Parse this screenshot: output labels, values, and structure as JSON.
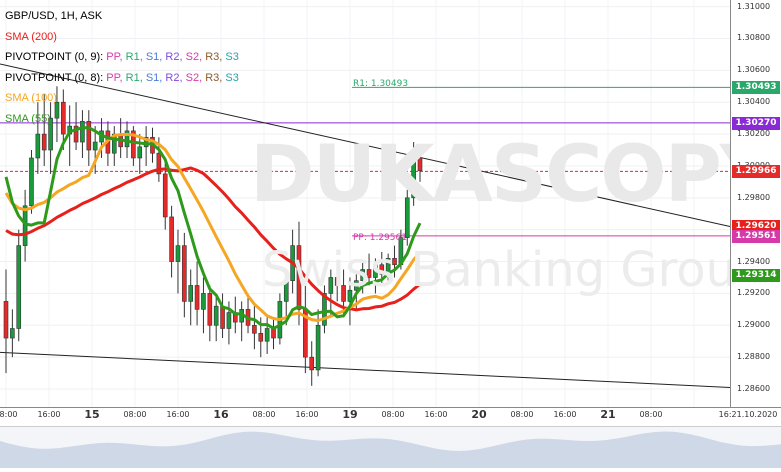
{
  "legend": {
    "symbol_line": "GBP/USD, 1H, ASK",
    "sma200": "SMA (200)",
    "pivot1_name": "PIVOTPOINT (0, 9):",
    "pivot1_items": [
      "PP,",
      "R1,",
      "S1,",
      "R2,",
      "S2,",
      "R3,",
      "S3"
    ],
    "pivot2_name": "PIVOTPOINT (0, 8):",
    "pivot2_items": [
      "PP,",
      "R1,",
      "S1,",
      "R2,",
      "S2,",
      "R3,",
      "S3"
    ],
    "sma100": "SMA (100)",
    "sma55": "SMA (55)"
  },
  "colors": {
    "sma200": "#e8201c",
    "sma100": "#f5a623",
    "sma55": "#2e9a1b",
    "up": "#1a9a3c",
    "down": "#e52a2a",
    "pp": "#d63aa8",
    "r1": "#2aa86b",
    "s1": "#4a7ad6",
    "r2": "#7b4ae0",
    "s2": "#d63aa8",
    "r3": "#8a5a2b",
    "s3": "#2aa2a8"
  },
  "watermark": {
    "brand": "DUKASCOPY",
    "sub": "Swiss Banking Group"
  },
  "chart_labels": {
    "r1_line": "R1: 1.30493",
    "pp_line": "PP: 1.29561"
  },
  "y_axis": {
    "ticks": [
      "1.31000",
      "1.30800",
      "1.30600",
      "1.30400",
      "1.30200",
      "1.30000",
      "1.29800",
      "1.29600",
      "1.29400",
      "1.29200",
      "1.29000",
      "1.28800",
      "1.28600"
    ],
    "labels": [
      {
        "text": "1.30493",
        "bg": "#2aa86b"
      },
      {
        "text": "1.30270",
        "bg": "#8a2ad6"
      },
      {
        "text": "1.29966",
        "bg": "#e52a2a"
      },
      {
        "text": "1.29620",
        "bg": "#e8201c"
      },
      {
        "text": "1.29561",
        "bg": "#d63aa8"
      },
      {
        "text": "1.29314",
        "bg": "#2e9a1b"
      }
    ]
  },
  "x_axis": {
    "ticks": [
      "08:00",
      "16:00",
      "15",
      "08:00",
      "16:00",
      "16",
      "08:00",
      "16:00",
      "19",
      "08:00",
      "16:00",
      "20",
      "08:00",
      "16:00",
      "21",
      "08:00",
      "16:21.10.2020"
    ]
  },
  "chart_data": {
    "type": "candlestick",
    "title": "GBP/USD, 1H, ASK",
    "ylim": [
      1.2855,
      1.3101
    ],
    "candles": [
      [
        1.2915,
        1.2935,
        1.287,
        1.2892
      ],
      [
        1.2892,
        1.291,
        1.288,
        1.2898
      ],
      [
        1.2898,
        1.296,
        1.289,
        1.295
      ],
      [
        1.295,
        1.2985,
        1.294,
        1.2975
      ],
      [
        1.2975,
        1.301,
        1.297,
        1.3005
      ],
      [
        1.3005,
        1.304,
        1.2995,
        1.302
      ],
      [
        1.302,
        1.3045,
        1.3,
        1.301
      ],
      [
        1.301,
        1.304,
        1.2995,
        1.303
      ],
      [
        1.303,
        1.305,
        1.3015,
        1.304
      ],
      [
        1.304,
        1.3048,
        1.301,
        1.302
      ],
      [
        1.302,
        1.3038,
        1.3,
        1.3025
      ],
      [
        1.3025,
        1.304,
        1.301,
        1.3015
      ],
      [
        1.3015,
        1.3035,
        1.3005,
        1.3028
      ],
      [
        1.3028,
        1.3035,
        1.3,
        1.301
      ],
      [
        1.301,
        1.3025,
        1.2995,
        1.3015
      ],
      [
        1.3015,
        1.303,
        1.3005,
        1.3022
      ],
      [
        1.3022,
        1.3028,
        1.3,
        1.3008
      ],
      [
        1.3008,
        1.3025,
        1.3,
        1.302
      ],
      [
        1.302,
        1.303,
        1.3005,
        1.3012
      ],
      [
        1.3012,
        1.3028,
        1.3005,
        1.3022
      ],
      [
        1.3022,
        1.3025,
        1.3,
        1.3005
      ],
      [
        1.3005,
        1.302,
        1.2995,
        1.3012
      ],
      [
        1.3012,
        1.3025,
        1.3,
        1.3018
      ],
      [
        1.3018,
        1.3024,
        1.3002,
        1.3008
      ],
      [
        1.3008,
        1.3018,
        1.299,
        1.2995
      ],
      [
        1.2995,
        1.3005,
        1.296,
        1.2968
      ],
      [
        1.2968,
        1.2975,
        1.293,
        1.294
      ],
      [
        1.294,
        1.296,
        1.292,
        1.295
      ],
      [
        1.295,
        1.2958,
        1.2905,
        1.2915
      ],
      [
        1.2915,
        1.2935,
        1.29,
        1.2925
      ],
      [
        1.2925,
        1.294,
        1.29,
        1.291
      ],
      [
        1.291,
        1.293,
        1.2895,
        1.292
      ],
      [
        1.292,
        1.2925,
        1.289,
        1.29
      ],
      [
        1.29,
        1.2918,
        1.289,
        1.2912
      ],
      [
        1.2912,
        1.292,
        1.2892,
        1.2898
      ],
      [
        1.2898,
        1.2915,
        1.2888,
        1.2908
      ],
      [
        1.2908,
        1.2918,
        1.2895,
        1.2902
      ],
      [
        1.2902,
        1.2915,
        1.289,
        1.291
      ],
      [
        1.291,
        1.292,
        1.2895,
        1.29
      ],
      [
        1.29,
        1.2912,
        1.2885,
        1.2895
      ],
      [
        1.2895,
        1.2905,
        1.288,
        1.289
      ],
      [
        1.289,
        1.2905,
        1.2882,
        1.2898
      ],
      [
        1.2898,
        1.2905,
        1.2885,
        1.2892
      ],
      [
        1.2892,
        1.292,
        1.2888,
        1.2915
      ],
      [
        1.2915,
        1.2935,
        1.29,
        1.2928
      ],
      [
        1.2928,
        1.296,
        1.292,
        1.295
      ],
      [
        1.295,
        1.2965,
        1.29,
        1.291
      ],
      [
        1.291,
        1.2925,
        1.287,
        1.288
      ],
      [
        1.288,
        1.289,
        1.2862,
        1.2872
      ],
      [
        1.2872,
        1.291,
        1.2868,
        1.29
      ],
      [
        1.29,
        1.2925,
        1.2895,
        1.292
      ],
      [
        1.292,
        1.2935,
        1.2905,
        1.293
      ],
      [
        1.293,
        1.294,
        1.2915,
        1.2925
      ],
      [
        1.2925,
        1.2935,
        1.2905,
        1.2915
      ],
      [
        1.2915,
        1.293,
        1.29,
        1.2922
      ],
      [
        1.2922,
        1.2932,
        1.291,
        1.2928
      ],
      [
        1.2928,
        1.294,
        1.292,
        1.2935
      ],
      [
        1.2935,
        1.2945,
        1.2925,
        1.293
      ],
      [
        1.293,
        1.2942,
        1.292,
        1.2938
      ],
      [
        1.2938,
        1.2946,
        1.2925,
        1.2932
      ],
      [
        1.2932,
        1.2945,
        1.2928,
        1.2942
      ],
      [
        1.2942,
        1.295,
        1.293,
        1.2938
      ],
      [
        1.2938,
        1.296,
        1.2935,
        1.2955
      ],
      [
        1.2955,
        1.2985,
        1.295,
        1.298
      ],
      [
        1.298,
        1.3015,
        1.2975,
        1.3005
      ],
      [
        1.3005,
        1.3012,
        1.299,
        1.2997
      ]
    ]
  }
}
